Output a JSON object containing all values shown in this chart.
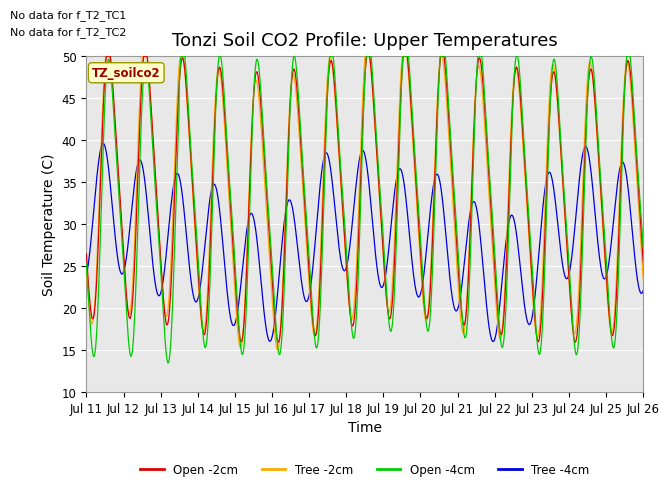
{
  "title": "Tonzi Soil CO2 Profile: Upper Temperatures",
  "xlabel": "Time",
  "ylabel": "Soil Temperature (C)",
  "ylim": [
    10,
    50
  ],
  "x_tick_labels": [
    "Jul 11",
    "Jul 12",
    "Jul 13",
    "Jul 14",
    "Jul 15",
    "Jul 16",
    "Jul 17",
    "Jul 18",
    "Jul 19",
    "Jul 20",
    "Jul 21",
    "Jul 22",
    "Jul 23",
    "Jul 24",
    "Jul 25",
    "Jul 26"
  ],
  "plot_bg_color": "#e8e8e8",
  "fig_bg_color": "#ffffff",
  "no_data_texts": [
    "No data for f_T2_TC1",
    "No data for f_T2_TC2"
  ],
  "tz_label": "TZ_soilco2",
  "lines": [
    {
      "label": "Open -2cm",
      "color": "#dd0000"
    },
    {
      "label": "Tree -2cm",
      "color": "#ffaa00"
    },
    {
      "label": "Open -4cm",
      "color": "#00cc00"
    },
    {
      "label": "Tree -4cm",
      "color": "#0000dd"
    }
  ],
  "yticks": [
    10,
    15,
    20,
    25,
    30,
    35,
    40,
    45,
    50
  ],
  "title_fontsize": 13,
  "axis_fontsize": 10,
  "tick_fontsize": 8.5
}
